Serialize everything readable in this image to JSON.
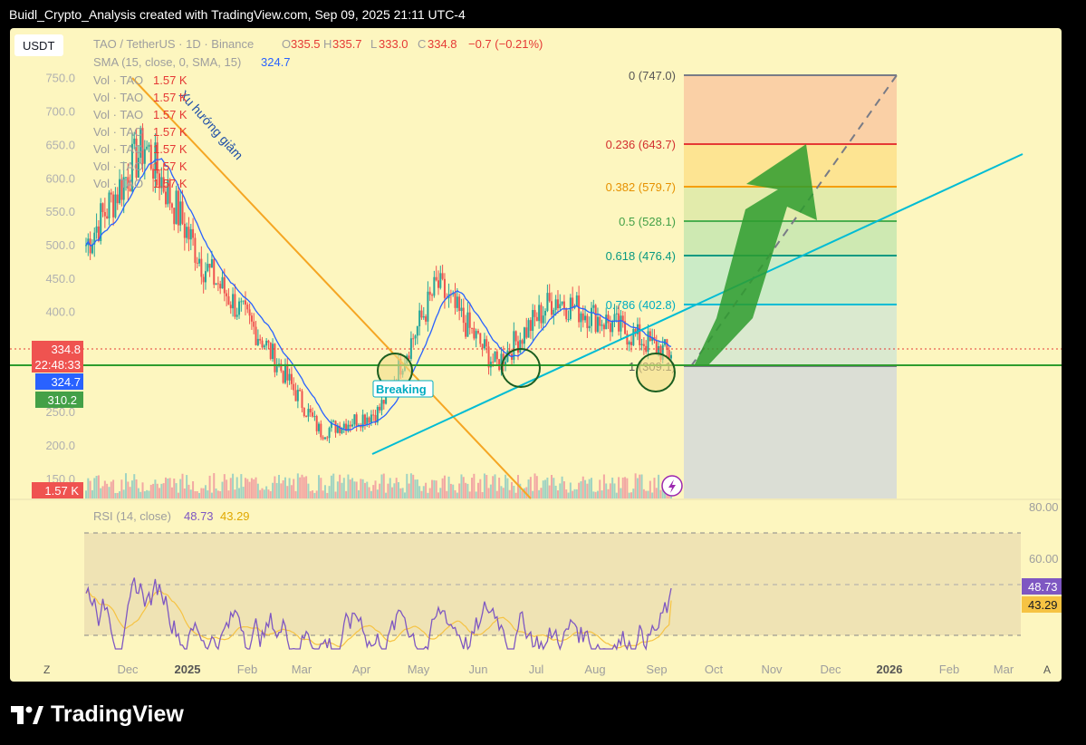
{
  "caption": "Buidl_Crypto_Analysis created with TradingView.com, Sep 09, 2025 21:11 UTC-4",
  "brand": "TradingView",
  "colors": {
    "background": "#fdf6bf",
    "up": "#26a69a",
    "down": "#ef5350",
    "sma": "#2962ff",
    "trendline": "#f5a623",
    "support_line": "#2e9c2e",
    "channel_line": "#00bcd4",
    "rsi": "#7e57c2",
    "rsi_ma": "#f6c343"
  },
  "currency_button": "USDT",
  "legend": {
    "symbol": "TAO / TetherUS · 1D · Binance",
    "o_label": "O",
    "o": "335.5",
    "h_label": "H",
    "h": "335.7",
    "l_label": "L",
    "l": "333.0",
    "c_label": "C",
    "c": "334.8",
    "change": "−0.7 (−0.21%)",
    "sma_label": "SMA (15, close, 0, SMA, 15)",
    "sma_value": "324.7",
    "vol_rows": [
      {
        "label": "Vol · TAO",
        "value": "1.57 K"
      },
      {
        "label": "Vol · TAO",
        "value": "1.57 K"
      },
      {
        "label": "Vol · TAO",
        "value": "1.57 K"
      },
      {
        "label": "Vol · TAO",
        "value": "1.57 K"
      },
      {
        "label": "Vol · TAO",
        "value": "1.57 K"
      },
      {
        "label": "Vol · TAO",
        "value": "1.57 K"
      },
      {
        "label": "Vol · TAO",
        "value": "1.57 K"
      }
    ]
  },
  "annotations": {
    "downtrend": "Xu hướng giảm",
    "breaking": "Breaking"
  },
  "price_badges": {
    "last": "334.8",
    "countdown": "22:48:33",
    "sma": "324.7",
    "support": "310.2",
    "volume": "1.57 K"
  },
  "rsi_legend": {
    "label": "RSI (14, close)",
    "value": "48.73",
    "ma": "43.29"
  },
  "rsi_axis": [
    "80.00",
    "60.00"
  ],
  "time_axis": [
    "Dec",
    "2025",
    "Feb",
    "Mar",
    "Apr",
    "May",
    "Jun",
    "Jul",
    "Aug",
    "Sep",
    "Oct",
    "Nov",
    "Dec",
    "2026",
    "Feb",
    "Mar"
  ],
  "bottom_left_button": "Z",
  "bottom_right_button": "A",
  "chart_data": [
    {
      "type": "candlestick",
      "title": "TAO / TetherUS · 1D · Binance",
      "ylim": [
        120,
        770
      ],
      "y_ticks": [
        "750.0",
        "700.0",
        "650.0",
        "600.0",
        "550.0",
        "500.0",
        "450.0",
        "400.0",
        "350.0",
        "300.0",
        "250.0",
        "200.0",
        "150.0"
      ],
      "monthly_closes": [
        {
          "x": "Nov 2024",
          "y": 500
        },
        {
          "x": "Dec 2024",
          "y": 650
        },
        {
          "x": "Jan 2025",
          "y": 470
        },
        {
          "x": "Feb 2025",
          "y": 360
        },
        {
          "x": "Mar 2025",
          "y": 220
        },
        {
          "x": "Apr 2025",
          "y": 250
        },
        {
          "x": "May 2025",
          "y": 440
        },
        {
          "x": "Jun 2025",
          "y": 320
        },
        {
          "x": "Jul 2025",
          "y": 420
        },
        {
          "x": "Aug 2025",
          "y": 380
        },
        {
          "x": "Sep 2025",
          "y": 334.8
        }
      ],
      "sma": {
        "name": "SMA (15, close, 0, SMA, 15)",
        "last": 324.7
      },
      "fibonacci": [
        {
          "level": "0",
          "price": 747.0,
          "label": "0 (747.0)"
        },
        {
          "level": "0.236",
          "price": 643.7,
          "label": "0.236 (643.7)"
        },
        {
          "level": "0.382",
          "price": 579.7,
          "label": "0.382 (579.7)"
        },
        {
          "level": "0.5",
          "price": 528.1,
          "label": "0.5 (528.1)"
        },
        {
          "level": "0.618",
          "price": 476.4,
          "label": "0.618 (476.4)"
        },
        {
          "level": "0.786",
          "price": 402.8,
          "label": "0.786 (402.8)"
        },
        {
          "level": "1",
          "price": 309.1,
          "label": "1 (309.1)"
        }
      ],
      "horizontal_support": 310.2,
      "last_price": 334.8
    },
    {
      "type": "line",
      "title": "RSI (14, close)",
      "series": [
        {
          "name": "RSI",
          "last": 48.73
        },
        {
          "name": "RSI MA",
          "last": 43.29
        }
      ],
      "bands": [
        70,
        30
      ],
      "y_ticks": [
        "80.00",
        "60.00"
      ]
    }
  ]
}
